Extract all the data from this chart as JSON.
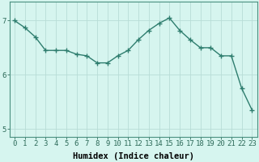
{
  "x": [
    0,
    1,
    2,
    3,
    4,
    5,
    6,
    7,
    8,
    9,
    10,
    11,
    12,
    13,
    14,
    15,
    16,
    17,
    18,
    19,
    20,
    21,
    22,
    23
  ],
  "y": [
    7.0,
    6.87,
    6.7,
    6.45,
    6.45,
    6.45,
    6.38,
    6.35,
    6.22,
    6.22,
    6.35,
    6.45,
    6.65,
    6.82,
    6.95,
    7.05,
    6.82,
    6.65,
    6.5,
    6.5,
    6.35,
    6.35,
    5.75,
    5.35
  ],
  "line_color": "#2e7d6e",
  "marker": "+",
  "marker_size": 5,
  "bg_color": "#d6f5ef",
  "grid_color": "#b8ddd6",
  "xlabel": "Humidex (Indice chaleur)",
  "ylim": [
    4.85,
    7.35
  ],
  "xlim": [
    -0.5,
    23.5
  ],
  "yticks": [
    5,
    6,
    7
  ],
  "xticks": [
    0,
    1,
    2,
    3,
    4,
    5,
    6,
    7,
    8,
    9,
    10,
    11,
    12,
    13,
    14,
    15,
    16,
    17,
    18,
    19,
    20,
    21,
    22,
    23
  ],
  "xlabel_fontsize": 7.5,
  "tick_fontsize": 6.5,
  "line_width": 1.0,
  "tick_color": "#2e6b5a",
  "spine_color": "#4a9080"
}
